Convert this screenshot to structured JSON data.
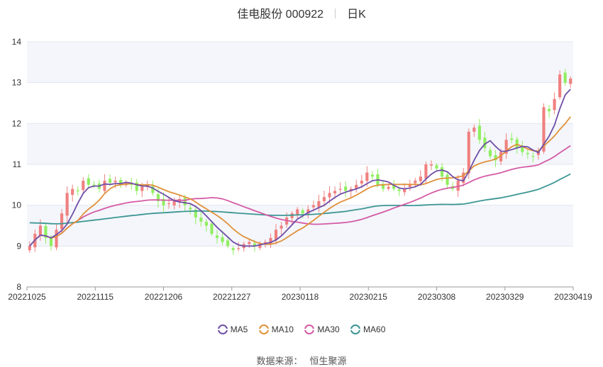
{
  "header": {
    "title": "佳电股份 000922",
    "period": "日K"
  },
  "source": {
    "label": "数据来源：",
    "name": "恒生聚源"
  },
  "chart_data": {
    "type": "candlestick",
    "ylim": [
      8,
      14
    ],
    "y_ticks": [
      8,
      9,
      10,
      11,
      12,
      13,
      14
    ],
    "x_tick_labels": [
      "20221025",
      "20221115",
      "20221206",
      "20221227",
      "20230118",
      "20230215",
      "20230308",
      "20230329",
      "20230419"
    ],
    "up_color": "#f08080",
    "down_color": "#90ee60",
    "closes": [
      9.0,
      9.3,
      9.5,
      9.2,
      9.0,
      9.4,
      9.8,
      10.3,
      10.4,
      10.35,
      10.6,
      10.5,
      10.5,
      10.4,
      10.6,
      10.55,
      10.6,
      10.5,
      10.55,
      10.5,
      10.35,
      10.45,
      10.5,
      10.3,
      10.1,
      10.0,
      10.05,
      10.1,
      10.15,
      10.0,
      9.9,
      9.7,
      9.6,
      9.5,
      9.3,
      9.2,
      9.1,
      9.0,
      8.9,
      8.95,
      9.05,
      9.1,
      9.0,
      9.05,
      9.1,
      9.2,
      9.4,
      9.5,
      9.7,
      9.8,
      9.9,
      9.8,
      9.9,
      10.0,
      10.1,
      10.2,
      10.3,
      10.35,
      10.4,
      10.35,
      10.4,
      10.5,
      10.6,
      10.8,
      10.7,
      10.5,
      10.4,
      10.45,
      10.4,
      10.35,
      10.4,
      10.5,
      10.6,
      10.7,
      11.0,
      11.0,
      10.9,
      10.7,
      10.5,
      10.4,
      10.6,
      10.8,
      11.8,
      11.9,
      11.6,
      11.4,
      11.2,
      11.1,
      11.3,
      11.6,
      11.6,
      11.4,
      11.3,
      11.25,
      11.2,
      11.3,
      12.4,
      12.3,
      12.6,
      13.2,
      13.0,
      13.1
    ],
    "ma5_label": "MA5",
    "ma10_label": "MA10",
    "ma30_label": "MA30",
    "ma60_label": "MA60",
    "ma_colors": {
      "ma5": "#6f4fa8",
      "ma10": "#e0913a",
      "ma30": "#d45ba6",
      "ma60": "#3c9694"
    },
    "ma60_start": 9.58
  }
}
